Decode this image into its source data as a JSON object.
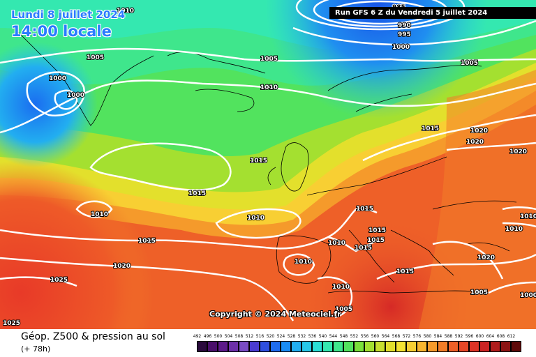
{
  "header": {
    "date": "Lundi 8 juillet 2024",
    "time": "14:00 locale",
    "run": "Run GFS 6 Z du Vendredi 5 juillet 2024"
  },
  "copyright": "Copyright © 2024 Meteociel.fr",
  "footer": {
    "title": "Géop. Z500 & pression au sol",
    "subtitle": "(+ 78h)"
  },
  "isobar_labels": [
    "1010",
    "985",
    "990",
    "995",
    "1000",
    "1005",
    "1000",
    "1000",
    "1005",
    "1010",
    "1005",
    "1015",
    "1020",
    "1020",
    "1020",
    "1015",
    "1015",
    "1010",
    "1015",
    "1015",
    "1010",
    "1010",
    "1015",
    "1015",
    "1015",
    "1010",
    "1010",
    "1010",
    "1015",
    "1020",
    "1025",
    "1010",
    "1005",
    "1005",
    "1020",
    "1000",
    "1025"
  ],
  "legend": {
    "values": [
      492,
      496,
      500,
      504,
      508,
      512,
      516,
      520,
      524,
      528,
      532,
      536,
      540,
      544,
      548,
      552,
      556,
      560,
      564,
      568,
      572,
      576,
      580,
      584,
      588,
      592,
      596,
      600,
      604,
      608,
      612
    ],
    "colors": [
      "#2b0a3d",
      "#4a0f6b",
      "#5d1a8a",
      "#6d2fa8",
      "#7a4cc4",
      "#4a3bd0",
      "#2f4fe0",
      "#1f6cf0",
      "#1a8cf5",
      "#22aef0",
      "#27c8e8",
      "#2adfd6",
      "#34e8b0",
      "#3fe68c",
      "#52e35e",
      "#7ae03a",
      "#a4e030",
      "#c8e02e",
      "#e3e02c",
      "#f5e432",
      "#f8cf33",
      "#f8b52f",
      "#f59a2b",
      "#f27d28",
      "#ee6028",
      "#e84828",
      "#de3426",
      "#cc2424",
      "#b01c1c",
      "#8c1414",
      "#5e0a0a"
    ]
  }
}
